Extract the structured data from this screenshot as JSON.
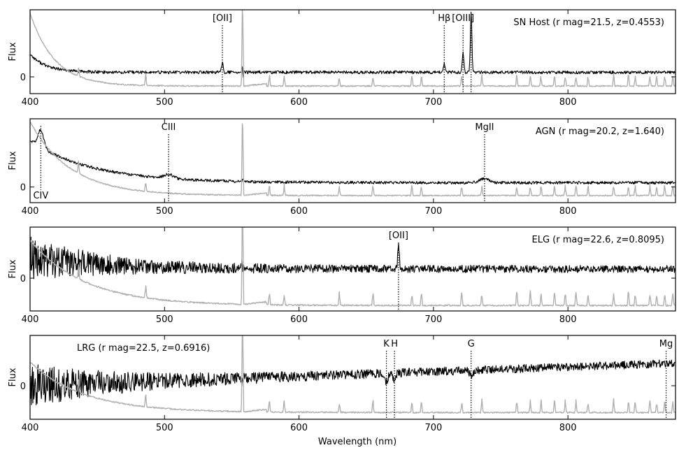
{
  "figure": {
    "xlabel": "Wavelength (nm)"
  },
  "chart_data": [
    {
      "type": "line",
      "ylabel": "Flux",
      "xlim": [
        400,
        880
      ],
      "x_ticks": [
        400,
        500,
        600,
        700,
        800
      ],
      "y_ticks": [
        0
      ],
      "ylim": [
        -0.55,
        2.2
      ],
      "title_text": "SN Host (r mag=21.5, z=0.4553)",
      "title_pos": "top-right",
      "series": [
        {
          "style": "spectrum",
          "color": "#000000",
          "baseline": 0.15,
          "noise": 0.05,
          "blue_rise": 0.6,
          "blue_decay": 12,
          "slope": 0.0
        },
        {
          "style": "sky",
          "color": "#b0b0b0",
          "baseline": -0.3,
          "noise": 0.02,
          "blue_rise": 2.4,
          "blue_decay": 18
        }
      ],
      "emission": [
        {
          "x": 543,
          "amp": 0.35,
          "width": 0.8
        },
        {
          "x": 708,
          "amp": 0.28,
          "width": 0.8
        },
        {
          "x": 722,
          "amp": 0.65,
          "width": 0.8
        },
        {
          "x": 728,
          "amp": 1.95,
          "width": 0.8
        }
      ],
      "lines": [
        {
          "label": "[OII]",
          "x": 543,
          "label_pos": "top"
        },
        {
          "label": "Hβ",
          "x": 708,
          "label_pos": "top"
        },
        {
          "label": "[OIII]",
          "x": 722,
          "label_pos": "top"
        },
        {
          "label": "",
          "x": 728,
          "label_pos": "top"
        }
      ],
      "seed": 11
    },
    {
      "type": "line",
      "ylabel": "Flux",
      "xlim": [
        400,
        880
      ],
      "x_ticks": [
        400,
        500,
        600,
        700,
        800
      ],
      "y_ticks": [
        0
      ],
      "ylim": [
        -0.55,
        2.4
      ],
      "title_text": "AGN (r mag=20.2, z=1.640)",
      "title_pos": "top-right",
      "series": [
        {
          "style": "spectrum",
          "color": "#000000",
          "baseline": 0.15,
          "noise": 0.05,
          "blue_rise": 1.5,
          "blue_decay": 45,
          "slope": 0.0
        },
        {
          "style": "sky",
          "color": "#b0b0b0",
          "baseline": -0.3,
          "noise": 0.02,
          "blue_rise": 2.6,
          "blue_decay": 30
        }
      ],
      "emission": [
        {
          "x": 408,
          "amp": 0.6,
          "width": 3
        },
        {
          "x": 503,
          "amp": 0.15,
          "width": 5
        },
        {
          "x": 738,
          "amp": 0.15,
          "width": 5
        }
      ],
      "lines": [
        {
          "label": "CIV",
          "x": 408,
          "label_pos": "bottom"
        },
        {
          "label": "CIII",
          "x": 503,
          "label_pos": "top"
        },
        {
          "label": "MgII",
          "x": 738,
          "label_pos": "top"
        }
      ],
      "seed": 22
    },
    {
      "type": "line",
      "ylabel": "Flux",
      "xlim": [
        400,
        880
      ],
      "x_ticks": [
        400,
        500,
        600,
        700,
        800
      ],
      "y_ticks": [
        0
      ],
      "ylim": [
        -0.9,
        1.4
      ],
      "title_text": "ELG (r mag=22.6, z=0.8095)",
      "title_pos": "top-right",
      "series": [
        {
          "style": "spectrum",
          "color": "#000000",
          "baseline": 0.25,
          "noise": 0.5,
          "blue_rise": 0.3,
          "blue_decay": 60,
          "slope": 0.0,
          "noise_decay": 60,
          "noise_floor": 0.1
        },
        {
          "style": "sky",
          "color": "#b0b0b0",
          "baseline": -0.75,
          "noise": 0.02,
          "blue_rise": 1.8,
          "blue_decay": 40
        }
      ],
      "emission": [
        {
          "x": 674,
          "amp": 0.75,
          "width": 0.8
        }
      ],
      "lines": [
        {
          "label": "[OII]",
          "x": 674,
          "label_pos": "top"
        }
      ],
      "seed": 33
    },
    {
      "type": "line",
      "ylabel": "Flux",
      "xlim": [
        400,
        880
      ],
      "x_ticks": [
        400,
        500,
        600,
        700,
        800
      ],
      "y_ticks": [
        0
      ],
      "ylim": [
        -1.0,
        1.5
      ],
      "title_text": "LRG (r mag=22.5, z=0.6916)",
      "title_pos": "top-left",
      "series": [
        {
          "style": "spectrum",
          "color": "#000000",
          "baseline": 0.0,
          "noise": 0.55,
          "blue_rise": 0.0,
          "blue_decay": 50,
          "slope": 0.0014,
          "noise_decay": 70,
          "noise_floor": 0.12
        },
        {
          "style": "sky",
          "color": "#b0b0b0",
          "baseline": -0.8,
          "noise": 0.02,
          "blue_rise": 1.5,
          "blue_decay": 40
        }
      ],
      "emission": [
        {
          "x": 665,
          "amp": -0.25,
          "width": 1.5
        },
        {
          "x": 671,
          "amp": -0.2,
          "width": 1.5
        },
        {
          "x": 728,
          "amp": -0.15,
          "width": 2
        }
      ],
      "lines": [
        {
          "label": "K",
          "x": 665,
          "label_pos": "top"
        },
        {
          "label": "H",
          "x": 671,
          "label_pos": "top"
        },
        {
          "label": "G",
          "x": 728,
          "label_pos": "top"
        },
        {
          "label": "Mg",
          "x": 873,
          "label_pos": "top"
        }
      ],
      "seed": 44
    }
  ]
}
